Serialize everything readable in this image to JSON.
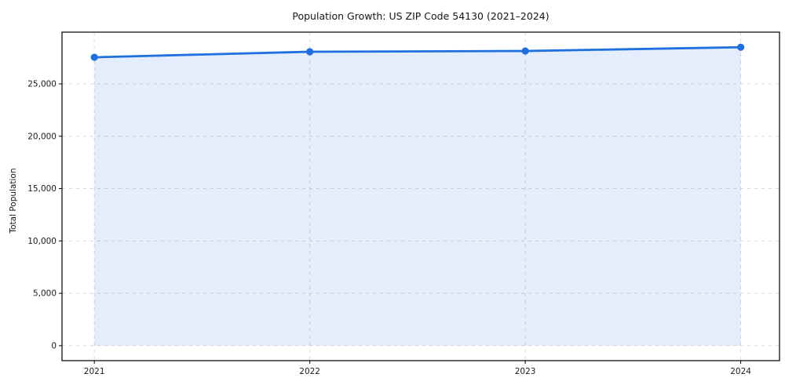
{
  "figure": {
    "title": "Population Growth: US ZIP Code 54130 (2021–2024)",
    "y_axis_label": "Total Population"
  },
  "colors": {
    "line": "#1f6fe0",
    "fill": "#e4eefb",
    "grid": "#d8d8d8",
    "spine": "#000000",
    "text": "#1a1a1a",
    "background": "#ffffff"
  },
  "chart_data": {
    "type": "area",
    "title": "Population Growth: US ZIP Code 54130 (2021–2024)",
    "xlabel": "",
    "ylabel": "Total Population",
    "x": [
      2021,
      2022,
      2023,
      2024
    ],
    "values": [
      27540,
      28070,
      28140,
      28500
    ],
    "series_name": "Total Population",
    "x_ticks": [
      2021,
      2022,
      2023,
      2024
    ],
    "x_tick_labels": [
      "2021",
      "2022",
      "2023",
      "2024"
    ],
    "y_ticks": [
      0,
      5000,
      10000,
      15000,
      20000,
      25000
    ],
    "y_tick_labels": [
      "0",
      "5,000",
      "10,000",
      "15,000",
      "20,000",
      "25,000"
    ],
    "xlim": [
      2020.85,
      2024.18
    ],
    "ylim": [
      -1430,
      29940
    ],
    "baseline": 0,
    "grid": true,
    "grid_style": "dashed",
    "legend": false,
    "marker": "circle"
  }
}
